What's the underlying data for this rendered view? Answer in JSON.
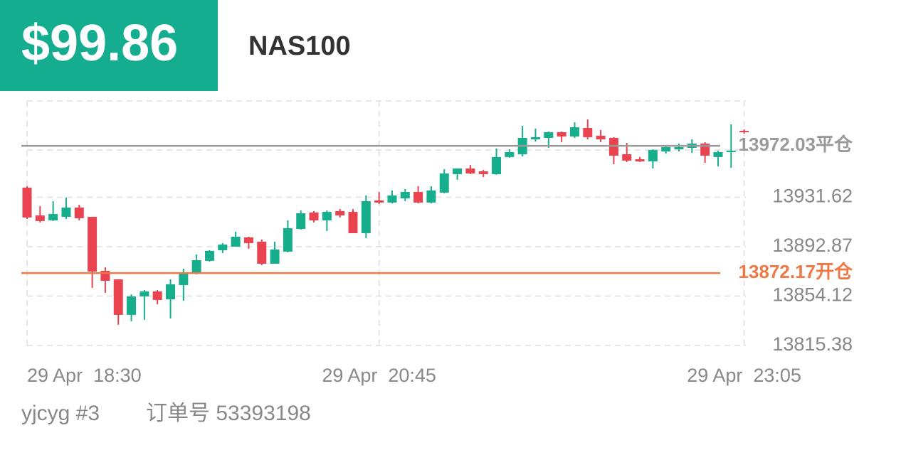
{
  "header": {
    "pnl": "$99.86",
    "symbol": "NAS100"
  },
  "footer": {
    "account": "yjcyg #3",
    "order": "订单号 53393198"
  },
  "chart_data": {
    "type": "candlestick",
    "categories": [
      "29 Apr  18:30",
      null,
      null,
      null,
      null,
      null,
      null,
      null,
      null,
      null,
      null,
      null,
      null,
      null,
      null,
      null,
      null,
      null,
      null,
      null,
      null,
      null,
      null,
      null,
      null,
      null,
      null,
      "29 Apr  20:45",
      null,
      null,
      null,
      null,
      null,
      null,
      null,
      null,
      null,
      null,
      null,
      null,
      null,
      null,
      null,
      null,
      null,
      null,
      null,
      null,
      null,
      null,
      null,
      null,
      null,
      null,
      null,
      "29 Apr  23:05"
    ],
    "open": [
      13939.2,
      13917.4,
      13913.5,
      13916.3,
      13923.6,
      13916.3,
      13873.9,
      13867.3,
      13839.4,
      13853.9,
      13857.8,
      13851.6,
      13862.8,
      13872.3,
      13881.8,
      13890.1,
      13892.9,
      13900.2,
      13896.8,
      13879.5,
      13889.0,
      13906.8,
      13919.7,
      13913.5,
      13920.8,
      13920.2,
      13903.5,
      13929.2,
      13927.5,
      13930.8,
      13935.8,
      13927.5,
      13935.3,
      13949.8,
      13954.2,
      13952.0,
      13949.8,
      13963.2,
      13965.4,
      13977.1,
      13978.2,
      13982.7,
      13979.3,
      13986.0,
      13979.9,
      13978.2,
      13965.4,
      13961.5,
      13959.8,
      13967.6,
      13969.3,
      13970.4,
      13973.8,
      13963.2,
      13967.1,
      13983.8
    ],
    "high": [
      13940.3,
      13924.7,
      13928.6,
      13931.4,
      13925.8,
      13916.3,
      13876.7,
      13867.3,
      13855.5,
      13858.9,
      13858.9,
      13867.3,
      13875.6,
      13886.8,
      13890.1,
      13895.7,
      13904.6,
      13900.7,
      13898.5,
      13896.8,
      13913.5,
      13921.3,
      13920.8,
      13921.3,
      13922.5,
      13922.5,
      13933.1,
      13935.8,
      13937.0,
      13938.1,
      13940.3,
      13940.3,
      13953.7,
      13954.2,
      13957.0,
      13953.1,
      13969.9,
      13969.3,
      13987.7,
      13985.5,
      13983.2,
      13983.2,
      13990.5,
      13992.7,
      13984.4,
      13978.8,
      13974.3,
      13963.2,
      13969.3,
      13971.5,
      13973.8,
      13977.1,
      13974.9,
      13968.2,
      13988.8,
      13984.9
    ],
    "low": [
      13914.6,
      13911.9,
      13913.0,
      13914.6,
      13913.5,
      13860.6,
      13856.7,
      13831.6,
      13834.4,
      13835.5,
      13847.7,
      13836.6,
      13850.5,
      13871.2,
      13881.2,
      13887.9,
      13892.9,
      13891.2,
      13878.4,
      13879.5,
      13888.4,
      13906.3,
      13911.9,
      13905.2,
      13915.8,
      13903.5,
      13899.6,
      13926.4,
      13926.9,
      13928.6,
      13926.9,
      13926.9,
      13934.7,
      13945.3,
      13949.8,
      13947.6,
      13949.2,
      13962.6,
      13963.7,
      13975.4,
      13970.4,
      13974.9,
      13978.2,
      13977.1,
      13974.9,
      13957.6,
      13959.3,
      13959.3,
      13954.2,
      13966.0,
      13967.6,
      13966.5,
      13958.7,
      13955.9,
      13954.8,
      13981.6
    ],
    "close": [
      13915.8,
      13913.0,
      13918.5,
      13923.6,
      13915.2,
      13873.4,
      13866.1,
      13839.4,
      13853.9,
      13857.8,
      13851.1,
      13863.4,
      13871.7,
      13882.3,
      13889.6,
      13894.6,
      13900.7,
      13895.7,
      13879.5,
      13890.7,
      13907.4,
      13919.1,
      13913.5,
      13920.2,
      13917.4,
      13903.5,
      13928.6,
      13927.5,
      13933.1,
      13935.8,
      13927.5,
      13937.0,
      13950.3,
      13954.2,
      13950.3,
      13949.8,
      13963.2,
      13967.1,
      13978.2,
      13978.8,
      13982.7,
      13979.3,
      13986.6,
      13978.8,
      13977.1,
      13964.3,
      13960.4,
      13959.8,
      13968.7,
      13971.0,
      13971.0,
      13973.8,
      13964.3,
      13967.1,
      13968.2,
      13982.7
    ],
    "up_color": "#17ae8e",
    "down_color": "#e8434f",
    "ylim": [
      13815.38,
      14007.2
    ],
    "yticks": [
      13815.38,
      13854.12,
      13892.87,
      13931.62
    ],
    "grid": true,
    "price_lines": [
      {
        "value": 13972.03,
        "label": "13972.03平仓",
        "color": "#9a9a9a"
      },
      {
        "value": 13872.17,
        "label": "13872.17开仓",
        "color": "#f07845"
      }
    ]
  }
}
